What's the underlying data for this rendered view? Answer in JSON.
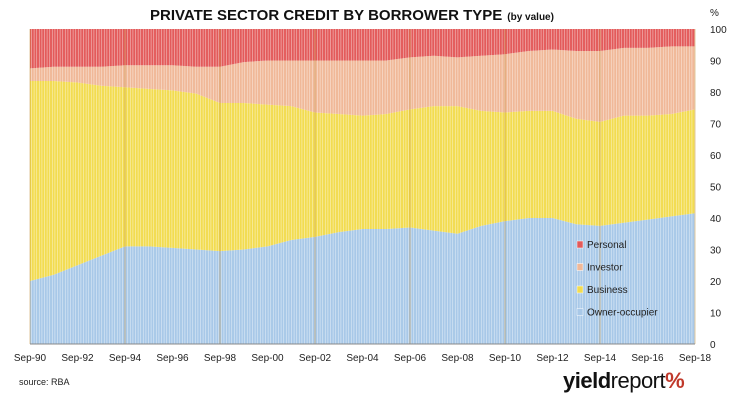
{
  "chart_data": {
    "type": "area",
    "stacked": true,
    "title": "PRIVATE SECTOR CREDIT BY BORROWER TYPE",
    "subtitle": "(by value)",
    "ylabel": "%",
    "ylim": [
      0,
      100
    ],
    "y_ticks": [
      "0",
      "10",
      "20",
      "30",
      "40",
      "50",
      "60",
      "70",
      "80",
      "90",
      "100"
    ],
    "x_ticks": [
      "Sep-90",
      "Sep-92",
      "Sep-94",
      "Sep-96",
      "Sep-98",
      "Sep-00",
      "Sep-02",
      "Sep-04",
      "Sep-06",
      "Sep-08",
      "Sep-10",
      "Sep-12",
      "Sep-14",
      "Sep-16",
      "Sep-18"
    ],
    "legend_position": "right-center",
    "colors": {
      "Owner-occupier": "#a8c8e8",
      "Business": "#f2dc50",
      "Investor": "#f0b898",
      "Personal": "#e35a5a"
    },
    "x": [
      1990.75,
      1991.75,
      1992.75,
      1993.75,
      1994.75,
      1995.75,
      1996.75,
      1997.75,
      1998.75,
      1999.75,
      2000.75,
      2001.75,
      2002.75,
      2003.75,
      2004.75,
      2005.75,
      2006.75,
      2007.75,
      2008.75,
      2009.75,
      2010.75,
      2011.75,
      2012.75,
      2013.75,
      2014.75,
      2015.75,
      2016.75,
      2017.75,
      2018.75
    ],
    "series": [
      {
        "name": "Owner-occupier",
        "values": [
          20,
          22,
          25,
          28,
          31,
          31,
          30.5,
          30,
          29.5,
          30,
          31,
          33,
          34,
          35.5,
          36.5,
          36.5,
          37,
          36,
          35,
          37.5,
          39,
          40,
          40,
          38,
          37.5,
          38.5,
          39.5,
          40.5,
          41.5
        ]
      },
      {
        "name": "Business",
        "values": [
          63.5,
          61.5,
          58,
          54,
          50.5,
          50,
          50,
          49.5,
          47,
          46.5,
          45,
          42.5,
          39.5,
          37.5,
          36,
          36.5,
          37.5,
          39.5,
          40.5,
          36.5,
          34.5,
          34,
          34,
          33.5,
          33,
          34,
          33,
          32.5,
          33
        ]
      },
      {
        "name": "Investor",
        "values": [
          4,
          4.5,
          5,
          6,
          7,
          7.5,
          8,
          8.5,
          11.5,
          13,
          14,
          14.5,
          16.5,
          17,
          17.5,
          17,
          16.5,
          16,
          15.5,
          17.5,
          18.5,
          19,
          19.5,
          21.5,
          22.5,
          21.5,
          21.5,
          21.5,
          20
        ]
      },
      {
        "name": "Personal",
        "values": [
          12.5,
          12,
          12,
          12,
          11.5,
          11.5,
          11.5,
          12,
          12,
          10.5,
          10,
          10,
          10,
          10,
          10,
          10,
          9,
          8.5,
          9,
          8.5,
          8,
          7,
          6.5,
          7,
          7,
          6,
          6,
          5.5,
          5.5
        ]
      }
    ]
  },
  "footer": {
    "source": "source: RBA",
    "logo_part1": "yield",
    "logo_part2": "report",
    "logo_part3": "%"
  }
}
